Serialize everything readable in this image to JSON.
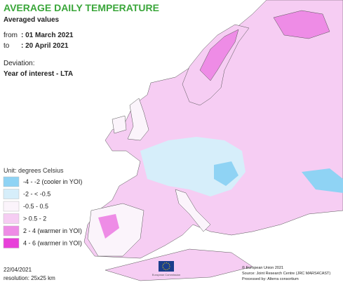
{
  "header": {
    "title": "AVERAGE DAILY TEMPERATURE",
    "subtitle": "Averaged values",
    "from_label": "from",
    "from_value": ": 01 March 2021",
    "to_label": "to",
    "to_value": ": 20 April 2021",
    "deviation_label": "Deviation:",
    "deviation_value": "Year of interest - LTA"
  },
  "legend": {
    "unit": "Unit: degrees Celsius",
    "items": [
      {
        "label": "-4 - -2 (cooler in YOI)",
        "color": "#8fd3f4"
      },
      {
        "label": "-2 - < -0.5",
        "color": "#d6eefa"
      },
      {
        "label": "-0.5 - 0.5",
        "color": "#fbf4fb"
      },
      {
        "label": "> 0.5 - 2",
        "color": "#f6cdf3"
      },
      {
        "label": "2 - 4 (warmer in YOI)",
        "color": "#ee8ce6"
      },
      {
        "label": "4 - 6 (warmer in YOI)",
        "color": "#e83fd9"
      }
    ]
  },
  "footer": {
    "date": "22/04/2021",
    "resolution": "resolution: 25x25 km",
    "logo_text": "European Commission",
    "copyright": "© European Union 2021",
    "source": "Source: Joint Research Centre (JRC MARS4CAST)",
    "processed": "Processed by: Alterra consortium"
  }
}
